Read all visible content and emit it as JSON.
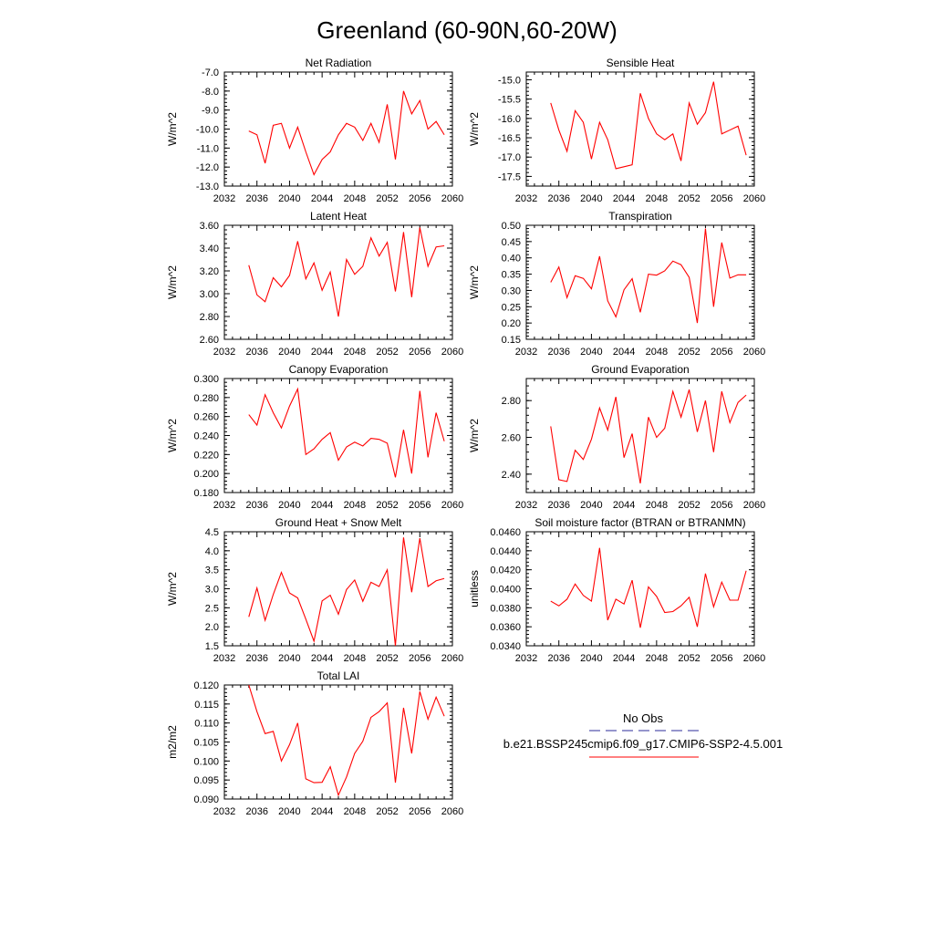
{
  "figure_title": "Greenland (60-90N,60-20W)",
  "legend": {
    "entries": [
      {
        "label": "No Obs",
        "color": "#2b2b9a",
        "style": "dashed"
      },
      {
        "label": "b.e21.BSSP245cmip6.f09_g17.CMIP6-SSP2-4.5.001",
        "color": "#ff0000",
        "style": "solid"
      }
    ]
  },
  "chart_data": [
    {
      "type": "line",
      "title": "Net Radiation",
      "xlabel": "",
      "ylabel": "W/m^2",
      "xlim": [
        2032,
        2060
      ],
      "ylim": [
        -13.0,
        -7.0
      ],
      "xticks": [
        2032,
        2036,
        2040,
        2044,
        2048,
        2052,
        2056,
        2060
      ],
      "yticks": [
        -13.0,
        -12.0,
        -11.0,
        -10.0,
        -9.0,
        -8.0,
        -7.0
      ],
      "ytick_decimals": 1,
      "series_color": "#ff0000",
      "series": [
        {
          "x": [
            2035,
            2036,
            2037,
            2038,
            2039,
            2040,
            2041,
            2042,
            2043,
            2044,
            2045,
            2046,
            2047,
            2048,
            2049,
            2050,
            2051,
            2052,
            2053,
            2054,
            2055,
            2056,
            2057,
            2058,
            2059
          ],
          "values": [
            -10.1,
            -10.3,
            -11.8,
            -9.8,
            -9.7,
            -11.0,
            -9.9,
            -11.2,
            -12.4,
            -11.6,
            -11.2,
            -10.3,
            -9.7,
            -9.9,
            -10.6,
            -9.7,
            -10.7,
            -8.7,
            -11.6,
            -8.0,
            -9.2,
            -8.5,
            -10.0,
            -9.6,
            -10.3
          ]
        }
      ]
    },
    {
      "type": "line",
      "title": "Sensible Heat",
      "xlabel": "",
      "ylabel": "W/m^2",
      "xlim": [
        2032,
        2060
      ],
      "ylim": [
        -17.75,
        -14.8
      ],
      "xticks": [
        2032,
        2036,
        2040,
        2044,
        2048,
        2052,
        2056,
        2060
      ],
      "yticks": [
        -17.5,
        -17.0,
        -16.5,
        -16.0,
        -15.5,
        -15.0
      ],
      "ytick_decimals": 1,
      "series_color": "#ff0000",
      "series": [
        {
          "x": [
            2035,
            2036,
            2037,
            2038,
            2039,
            2040,
            2041,
            2042,
            2043,
            2044,
            2045,
            2046,
            2047,
            2048,
            2049,
            2050,
            2051,
            2052,
            2053,
            2054,
            2055,
            2056,
            2057,
            2058,
            2059
          ],
          "values": [
            -15.6,
            -16.3,
            -16.85,
            -15.8,
            -16.1,
            -17.05,
            -16.1,
            -16.55,
            -17.3,
            -17.25,
            -17.2,
            -15.35,
            -16.0,
            -16.4,
            -16.55,
            -16.4,
            -17.1,
            -15.6,
            -16.15,
            -15.85,
            -15.05,
            -16.4,
            -16.3,
            -16.2,
            -16.95
          ]
        }
      ]
    },
    {
      "type": "line",
      "title": "Latent Heat",
      "xlabel": "",
      "ylabel": "W/m^2",
      "xlim": [
        2032,
        2060
      ],
      "ylim": [
        2.6,
        3.6
      ],
      "xticks": [
        2032,
        2036,
        2040,
        2044,
        2048,
        2052,
        2056,
        2060
      ],
      "yticks": [
        2.6,
        2.8,
        3.0,
        3.2,
        3.4,
        3.6
      ],
      "ytick_decimals": 2,
      "series_color": "#ff0000",
      "series": [
        {
          "x": [
            2035,
            2036,
            2037,
            2038,
            2039,
            2040,
            2041,
            2042,
            2043,
            2044,
            2045,
            2046,
            2047,
            2048,
            2049,
            2050,
            2051,
            2052,
            2053,
            2054,
            2055,
            2056,
            2057,
            2058,
            2059
          ],
          "values": [
            3.25,
            2.99,
            2.93,
            3.14,
            3.06,
            3.16,
            3.46,
            3.13,
            3.27,
            3.03,
            3.19,
            2.8,
            3.3,
            3.17,
            3.24,
            3.49,
            3.33,
            3.45,
            3.02,
            3.54,
            2.97,
            3.58,
            3.24,
            3.41,
            3.42
          ]
        }
      ]
    },
    {
      "type": "line",
      "title": "Transpiration",
      "xlabel": "",
      "ylabel": "W/m^2",
      "xlim": [
        2032,
        2060
      ],
      "ylim": [
        0.15,
        0.5
      ],
      "xticks": [
        2032,
        2036,
        2040,
        2044,
        2048,
        2052,
        2056,
        2060
      ],
      "yticks": [
        0.15,
        0.2,
        0.25,
        0.3,
        0.35,
        0.4,
        0.45,
        0.5
      ],
      "ytick_decimals": 2,
      "series_color": "#ff0000",
      "series": [
        {
          "x": [
            2035,
            2036,
            2037,
            2038,
            2039,
            2040,
            2041,
            2042,
            2043,
            2044,
            2045,
            2046,
            2047,
            2048,
            2049,
            2050,
            2051,
            2052,
            2053,
            2054,
            2055,
            2056,
            2057,
            2058,
            2059
          ],
          "values": [
            0.325,
            0.372,
            0.278,
            0.345,
            0.337,
            0.305,
            0.405,
            0.268,
            0.219,
            0.302,
            0.336,
            0.233,
            0.35,
            0.347,
            0.36,
            0.39,
            0.379,
            0.34,
            0.2,
            0.49,
            0.25,
            0.447,
            0.338,
            0.348,
            0.348
          ]
        }
      ]
    },
    {
      "type": "line",
      "title": "Canopy Evaporation",
      "xlabel": "",
      "ylabel": "W/m^2",
      "xlim": [
        2032,
        2060
      ],
      "ylim": [
        0.18,
        0.3
      ],
      "xticks": [
        2032,
        2036,
        2040,
        2044,
        2048,
        2052,
        2056,
        2060
      ],
      "yticks": [
        0.18,
        0.2,
        0.22,
        0.24,
        0.26,
        0.28,
        0.3
      ],
      "ytick_decimals": 3,
      "series_color": "#ff0000",
      "series": [
        {
          "x": [
            2035,
            2036,
            2037,
            2038,
            2039,
            2040,
            2041,
            2042,
            2043,
            2044,
            2045,
            2046,
            2047,
            2048,
            2049,
            2050,
            2051,
            2052,
            2053,
            2054,
            2055,
            2056,
            2057,
            2058,
            2059
          ],
          "values": [
            0.262,
            0.251,
            0.283,
            0.264,
            0.248,
            0.271,
            0.289,
            0.22,
            0.226,
            0.236,
            0.243,
            0.214,
            0.228,
            0.233,
            0.229,
            0.237,
            0.236,
            0.232,
            0.196,
            0.246,
            0.2,
            0.287,
            0.217,
            0.264,
            0.234
          ]
        }
      ]
    },
    {
      "type": "line",
      "title": "Ground Evaporation",
      "xlabel": "",
      "ylabel": "W/m^2",
      "xlim": [
        2032,
        2060
      ],
      "ylim": [
        2.3,
        2.92
      ],
      "xticks": [
        2032,
        2036,
        2040,
        2044,
        2048,
        2052,
        2056,
        2060
      ],
      "yticks": [
        2.4,
        2.6,
        2.8
      ],
      "ytick_decimals": 2,
      "series_color": "#ff0000",
      "series": [
        {
          "x": [
            2035,
            2036,
            2037,
            2038,
            2039,
            2040,
            2041,
            2042,
            2043,
            2044,
            2045,
            2046,
            2047,
            2048,
            2049,
            2050,
            2051,
            2052,
            2053,
            2054,
            2055,
            2056,
            2057,
            2058,
            2059
          ],
          "values": [
            2.66,
            2.37,
            2.36,
            2.53,
            2.48,
            2.59,
            2.76,
            2.64,
            2.82,
            2.49,
            2.62,
            2.35,
            2.71,
            2.6,
            2.65,
            2.85,
            2.71,
            2.86,
            2.63,
            2.8,
            2.52,
            2.85,
            2.68,
            2.79,
            2.83
          ]
        }
      ]
    },
    {
      "type": "line",
      "title": "Ground Heat + Snow Melt",
      "xlabel": "",
      "ylabel": "W/m^2",
      "xlim": [
        2032,
        2060
      ],
      "ylim": [
        1.5,
        4.5
      ],
      "xticks": [
        2032,
        2036,
        2040,
        2044,
        2048,
        2052,
        2056,
        2060
      ],
      "yticks": [
        1.5,
        2.0,
        2.5,
        3.0,
        3.5,
        4.0,
        4.5
      ],
      "ytick_decimals": 1,
      "series_color": "#ff0000",
      "series": [
        {
          "x": [
            2035,
            2036,
            2037,
            2038,
            2039,
            2040,
            2041,
            2042,
            2043,
            2044,
            2045,
            2046,
            2047,
            2048,
            2049,
            2050,
            2051,
            2052,
            2053,
            2054,
            2055,
            2056,
            2057,
            2058,
            2059
          ],
          "values": [
            2.26,
            3.02,
            2.17,
            2.85,
            3.43,
            2.89,
            2.76,
            2.2,
            1.62,
            2.68,
            2.83,
            2.33,
            2.98,
            3.23,
            2.67,
            3.17,
            3.06,
            3.5,
            1.5,
            4.35,
            2.91,
            4.33,
            3.06,
            3.21,
            3.27
          ]
        }
      ]
    },
    {
      "type": "line",
      "title": "Soil moisture factor (BTRAN or BTRANMN)",
      "xlabel": "",
      "ylabel": "unitless",
      "xlim": [
        2032,
        2060
      ],
      "ylim": [
        0.034,
        0.046
      ],
      "xticks": [
        2032,
        2036,
        2040,
        2044,
        2048,
        2052,
        2056,
        2060
      ],
      "yticks": [
        0.034,
        0.036,
        0.038,
        0.04,
        0.042,
        0.044,
        0.046
      ],
      "ytick_decimals": 4,
      "series_color": "#ff0000",
      "series": [
        {
          "x": [
            2035,
            2036,
            2037,
            2038,
            2039,
            2040,
            2041,
            2042,
            2043,
            2044,
            2045,
            2046,
            2047,
            2048,
            2049,
            2050,
            2051,
            2052,
            2053,
            2054,
            2055,
            2056,
            2057,
            2058,
            2059
          ],
          "values": [
            0.0387,
            0.0382,
            0.0389,
            0.0405,
            0.0393,
            0.0387,
            0.0443,
            0.0367,
            0.0389,
            0.0384,
            0.0409,
            0.0359,
            0.0402,
            0.0392,
            0.0375,
            0.0376,
            0.0382,
            0.0391,
            0.036,
            0.0416,
            0.0381,
            0.0407,
            0.0388,
            0.0388,
            0.0419
          ]
        }
      ]
    },
    {
      "type": "line",
      "title": "Total LAI",
      "xlabel": "",
      "ylabel": "m2/m2",
      "xlim": [
        2032,
        2060
      ],
      "ylim": [
        0.09,
        0.12
      ],
      "xticks": [
        2032,
        2036,
        2040,
        2044,
        2048,
        2052,
        2056,
        2060
      ],
      "yticks": [
        0.09,
        0.095,
        0.1,
        0.105,
        0.11,
        0.115,
        0.12
      ],
      "ytick_decimals": 3,
      "series_color": "#ff0000",
      "series": [
        {
          "x": [
            2035,
            2036,
            2037,
            2038,
            2039,
            2040,
            2041,
            2042,
            2043,
            2044,
            2045,
            2046,
            2047,
            2048,
            2049,
            2050,
            2051,
            2052,
            2053,
            2054,
            2055,
            2056,
            2057,
            2058,
            2059
          ],
          "values": [
            0.12,
            0.113,
            0.1072,
            0.1078,
            0.1,
            0.1043,
            0.11,
            0.0953,
            0.0943,
            0.0944,
            0.0985,
            0.091,
            0.0958,
            0.102,
            0.1052,
            0.1115,
            0.113,
            0.1153,
            0.0943,
            0.114,
            0.102,
            0.1183,
            0.111,
            0.1168,
            0.1118
          ]
        }
      ]
    }
  ]
}
